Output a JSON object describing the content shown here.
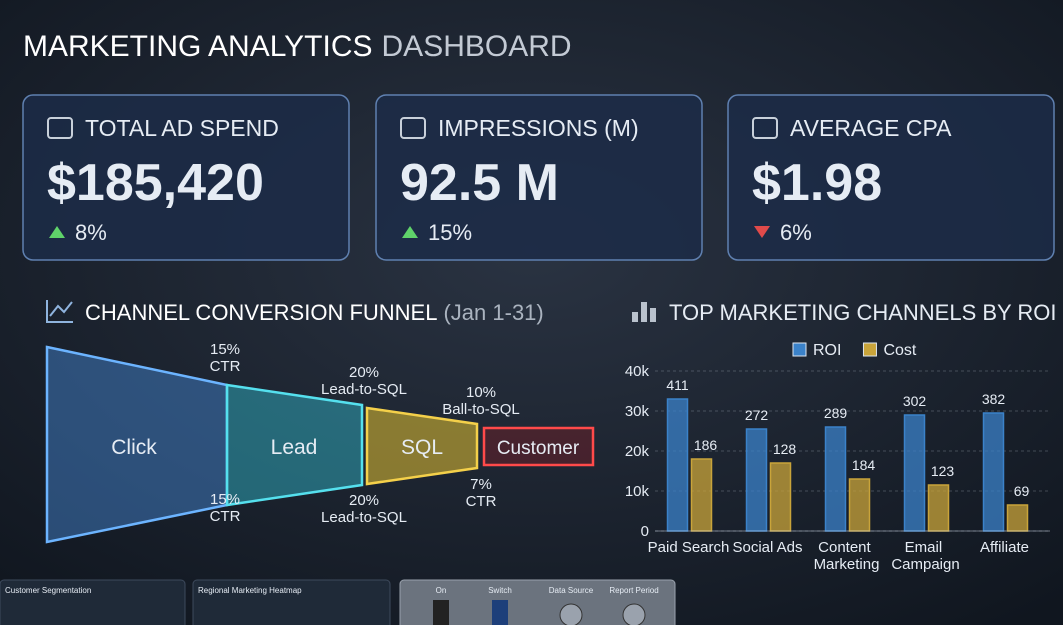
{
  "header": {
    "title": "MARKETING ANALYTICS",
    "title_suffix": "DASHBOARD"
  },
  "kpis": [
    {
      "label": "TOTAL AD SPEND",
      "value": "$185,420",
      "change": "8%",
      "direction": "up",
      "color": "#5fd36a"
    },
    {
      "label": "IMPRESSIONS (M)",
      "value": "92.5 M",
      "change": "15%",
      "direction": "up",
      "color": "#5cc8ee"
    },
    {
      "label": "AVERAGE CPA",
      "value": "$1.98",
      "change": "6%",
      "direction": "down",
      "color": "#f2c23a"
    }
  ],
  "funnel": {
    "title": "CHANNEL CONVERSION FUNNEL",
    "period": "(Jan 1-31)",
    "stages": [
      "Click",
      "Lead",
      "SQL",
      "Customer"
    ],
    "top_notes": [
      {
        "rate": "15%",
        "text": "CTR"
      },
      {
        "rate": "20%",
        "text": "Lead-to-SQL"
      },
      {
        "rate": "10%",
        "text": "Ball-to-SQL"
      }
    ],
    "bottom_notes": [
      {
        "rate": "15%",
        "text": "CTR"
      },
      {
        "rate": "20%",
        "text": "Lead-to-SQL"
      },
      {
        "rate": "7%",
        "text": "CTR"
      }
    ]
  },
  "chart_data": {
    "type": "bar",
    "title": "TOP MARKETING CHANNELS BY ROI",
    "categories": [
      "Paid Search",
      "Social Ads",
      "Content Marketing",
      "Email Campaign",
      "Affiliate"
    ],
    "series": [
      {
        "name": "ROI",
        "color": "#3b82c9",
        "values": [
          33000,
          25500,
          26000,
          29000,
          29500
        ],
        "annotations": [
          "411",
          "272",
          "289",
          "302",
          "382"
        ]
      },
      {
        "name": "Cost",
        "color": "#c9a43a",
        "values": [
          18000,
          17000,
          13000,
          11500,
          6500
        ],
        "annotations": [
          "186",
          "128",
          "184",
          "123",
          "69"
        ]
      }
    ],
    "ylim": [
      0,
      40000
    ],
    "yticks": [
      0,
      {
        "value": 10000,
        "label": "10k"
      },
      {
        "value": 20000,
        "label": "20k"
      },
      {
        "value": 30000,
        "label": "30k"
      },
      {
        "value": 40000,
        "label": "40k"
      }
    ],
    "grid": true,
    "legend": "top"
  },
  "footer_panels": {
    "panels": [
      "Customer Segmentation",
      "Regional Marketing Heatmap"
    ],
    "controls": [
      "On",
      "Switch",
      "Data Source",
      "Report Period"
    ]
  }
}
